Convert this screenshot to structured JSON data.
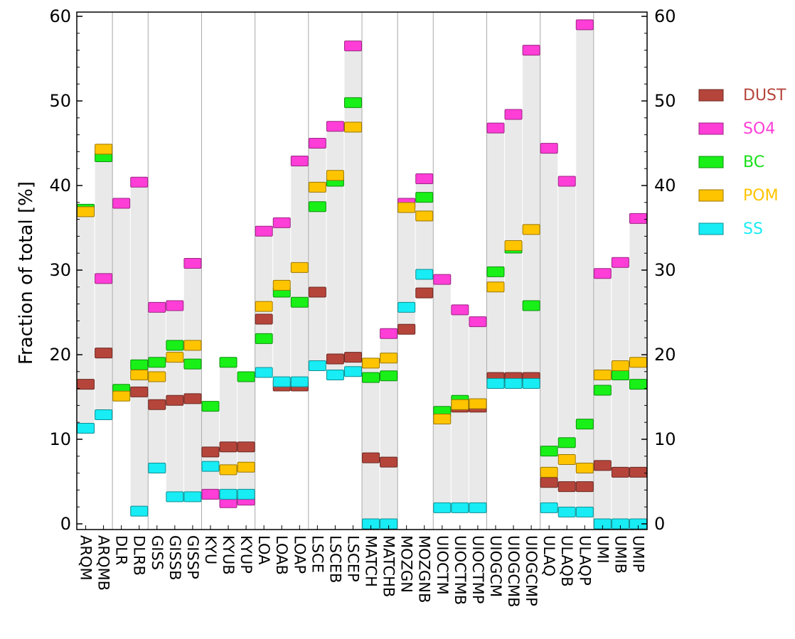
{
  "chart_data": {
    "type": "range-marker",
    "title": "",
    "xlabel": "",
    "ylabel": "Fraction of total [%]",
    "ylim": [
      0,
      60
    ],
    "yticks": [
      0,
      10,
      20,
      30,
      40,
      50,
      60
    ],
    "legend_position": "right",
    "grid": false,
    "categories": [
      "ARQM",
      "ARQMB",
      "DLR",
      "DLRB",
      "GISS",
      "GISSB",
      "GISSP",
      "KYU",
      "KYUB",
      "KYUP",
      "LOA",
      "LOAB",
      "LOAP",
      "LSCE",
      "LSCEB",
      "LSCEP",
      "MATCH",
      "MATCHB",
      "MOZGN",
      "MOZGNB",
      "UIOCTM",
      "UIOCTMB",
      "UIOCTMP",
      "UIOGCM",
      "UIOGCMB",
      "UIOGCMP",
      "ULAQ",
      "ULAQB",
      "ULAQP",
      "UMI",
      "UMIB",
      "UMIP"
    ],
    "group_separators_after": [
      "ARQMB",
      "DLRB",
      "GISSP",
      "KYUP",
      "LOAP",
      "LSCEP",
      "MATCHB",
      "MOZGNB",
      "UIOCTMP",
      "UIOGCMP",
      "ULAQP"
    ],
    "series": [
      {
        "name": "DUST",
        "color": "#b5453b",
        "values": [
          16.5,
          20.2,
          null,
          15.6,
          14.1,
          14.6,
          14.8,
          8.5,
          9.1,
          9.1,
          24.2,
          16.3,
          16.3,
          27.4,
          19.5,
          19.7,
          7.8,
          7.3,
          23.0,
          27.3,
          null,
          13.8,
          13.8,
          17.3,
          17.3,
          17.3,
          4.9,
          4.4,
          4.4,
          6.9,
          6.1,
          6.1
        ]
      },
      {
        "name": "SO4",
        "color": "#ff3dd7",
        "values": [
          null,
          29.0,
          37.9,
          40.4,
          25.6,
          25.8,
          30.8,
          3.5,
          2.5,
          2.8,
          34.6,
          35.6,
          42.9,
          45.0,
          47.0,
          56.5,
          null,
          22.5,
          37.9,
          40.8,
          28.9,
          25.3,
          23.9,
          46.8,
          48.4,
          56.0,
          44.4,
          40.5,
          59.0,
          29.6,
          30.9,
          36.1
        ]
      },
      {
        "name": "BC",
        "color": "#18f018",
        "values": [
          37.2,
          43.4,
          15.9,
          18.8,
          19.1,
          21.1,
          18.9,
          13.9,
          19.1,
          17.4,
          21.9,
          27.4,
          26.2,
          37.5,
          40.5,
          49.8,
          17.3,
          17.5,
          null,
          38.6,
          13.3,
          14.6,
          null,
          29.8,
          32.6,
          25.8,
          8.6,
          9.6,
          11.8,
          15.8,
          17.6,
          16.5
        ]
      },
      {
        "name": "POM",
        "color": "#ffc400",
        "values": [
          36.9,
          44.3,
          15.1,
          17.6,
          17.4,
          19.7,
          21.1,
          null,
          6.4,
          6.7,
          25.7,
          28.2,
          30.3,
          39.8,
          41.2,
          46.9,
          19.0,
          19.6,
          37.4,
          36.4,
          12.4,
          14.1,
          14.2,
          28.0,
          32.9,
          34.8,
          6.1,
          7.6,
          6.6,
          17.6,
          18.7,
          19.1
        ]
      },
      {
        "name": "SS",
        "color": "#18ecf4",
        "values": [
          11.3,
          12.9,
          null,
          1.5,
          6.6,
          3.2,
          3.2,
          6.8,
          3.5,
          3.5,
          17.9,
          16.8,
          16.8,
          18.7,
          17.6,
          18.0,
          0.0,
          0.0,
          25.6,
          29.5,
          1.9,
          1.9,
          1.9,
          16.6,
          16.6,
          16.6,
          1.9,
          1.4,
          1.4,
          0.0,
          0.0,
          0.0
        ]
      }
    ]
  }
}
